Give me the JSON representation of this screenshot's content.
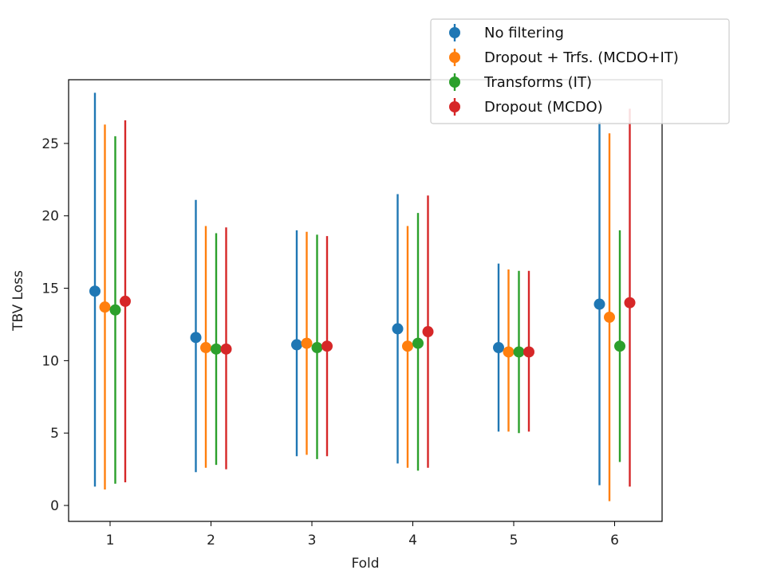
{
  "chart_data": {
    "type": "errorbar",
    "title": "",
    "xlabel": "Fold",
    "ylabel": "TBV Loss",
    "categories": [
      "1",
      "2",
      "3",
      "4",
      "5",
      "6"
    ],
    "yticks": [
      "0",
      "5",
      "10",
      "15",
      "20",
      "25"
    ],
    "ylim": [
      -1.1,
      29.4
    ],
    "grid": false,
    "legend_position": "upper-right, extending above the axes",
    "series": [
      {
        "name": "No filtering",
        "color": "#1f77b4",
        "values": [
          14.8,
          11.6,
          11.1,
          12.2,
          10.9,
          13.9
        ],
        "lower": [
          1.3,
          2.3,
          3.4,
          2.9,
          5.1,
          1.4
        ],
        "upper": [
          28.5,
          21.1,
          19.0,
          21.5,
          16.7,
          26.5
        ]
      },
      {
        "name": "Dropout + Trfs. (MCDO+IT)",
        "color": "#ff7f0e",
        "values": [
          13.7,
          10.9,
          11.2,
          11.0,
          10.6,
          13.0
        ],
        "lower": [
          1.1,
          2.6,
          3.5,
          2.6,
          5.1,
          0.3
        ],
        "upper": [
          26.3,
          19.3,
          18.9,
          19.3,
          16.3,
          25.7
        ]
      },
      {
        "name": "Transforms (IT)",
        "color": "#2ca02c",
        "values": [
          13.5,
          10.8,
          10.9,
          11.2,
          10.6,
          11.0
        ],
        "lower": [
          1.5,
          2.8,
          3.2,
          2.4,
          5.0,
          3.0
        ],
        "upper": [
          25.5,
          18.8,
          18.7,
          20.2,
          16.2,
          19.0
        ]
      },
      {
        "name": "Dropout (MCDO)",
        "color": "#d62728",
        "values": [
          14.1,
          10.8,
          11.0,
          12.0,
          10.6,
          14.0
        ],
        "lower": [
          1.6,
          2.5,
          3.4,
          2.6,
          5.1,
          1.3
        ],
        "upper": [
          26.6,
          19.2,
          18.6,
          21.4,
          16.2,
          27.4
        ]
      }
    ]
  }
}
